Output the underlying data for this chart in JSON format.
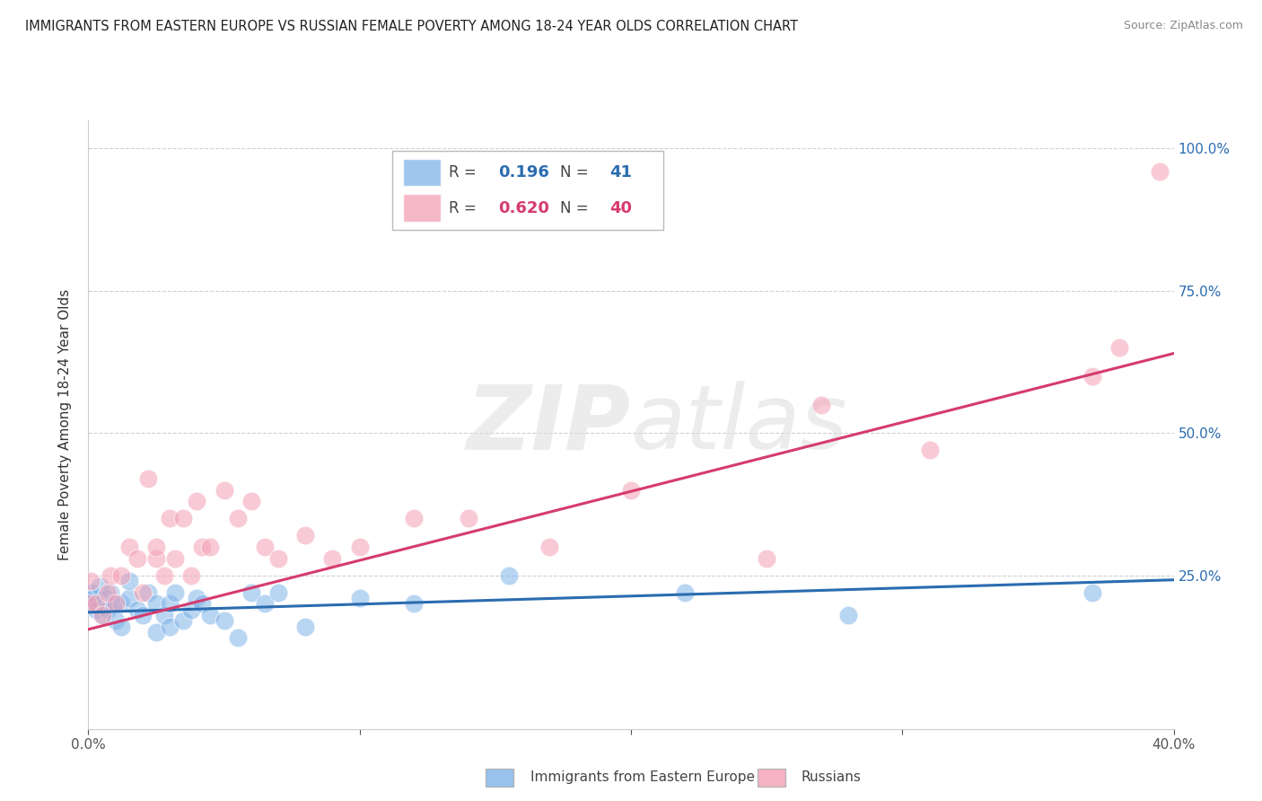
{
  "title": "IMMIGRANTS FROM EASTERN EUROPE VS RUSSIAN FEMALE POVERTY AMONG 18-24 YEAR OLDS CORRELATION CHART",
  "source": "Source: ZipAtlas.com",
  "ylabel": "Female Poverty Among 18-24 Year Olds",
  "xlim": [
    0.0,
    0.4
  ],
  "ylim": [
    -0.02,
    1.05
  ],
  "ytick_labels": [
    "",
    "25.0%",
    "50.0%",
    "75.0%",
    "100.0%"
  ],
  "ytick_positions": [
    0.0,
    0.25,
    0.5,
    0.75,
    1.0
  ],
  "legend_r_blue": "0.196",
  "legend_n_blue": "41",
  "legend_r_pink": "0.620",
  "legend_n_pink": "40",
  "blue_color": "#7fb3e8",
  "pink_color": "#f4a0b5",
  "blue_line_color": "#2b6cb0",
  "pink_line_color": "#d63b6e",
  "watermark_color": "#e0e0e0",
  "blue_scatter_x": [
    0.0,
    0.001,
    0.002,
    0.003,
    0.004,
    0.005,
    0.006,
    0.007,
    0.008,
    0.009,
    0.01,
    0.012,
    0.012,
    0.015,
    0.015,
    0.018,
    0.02,
    0.022,
    0.025,
    0.025,
    0.028,
    0.03,
    0.03,
    0.032,
    0.035,
    0.038,
    0.04,
    0.042,
    0.045,
    0.05,
    0.055,
    0.06,
    0.065,
    0.07,
    0.08,
    0.1,
    0.12,
    0.155,
    0.22,
    0.28,
    0.37
  ],
  "blue_scatter_y": [
    0.2,
    0.22,
    0.21,
    0.19,
    0.23,
    0.18,
    0.21,
    0.19,
    0.22,
    0.2,
    0.17,
    0.2,
    0.16,
    0.21,
    0.24,
    0.19,
    0.18,
    0.22,
    0.2,
    0.15,
    0.18,
    0.16,
    0.2,
    0.22,
    0.17,
    0.19,
    0.21,
    0.2,
    0.18,
    0.17,
    0.14,
    0.22,
    0.2,
    0.22,
    0.16,
    0.21,
    0.2,
    0.25,
    0.22,
    0.18,
    0.22
  ],
  "pink_scatter_x": [
    0.0,
    0.001,
    0.003,
    0.005,
    0.007,
    0.008,
    0.01,
    0.012,
    0.015,
    0.018,
    0.02,
    0.022,
    0.025,
    0.025,
    0.028,
    0.03,
    0.032,
    0.035,
    0.038,
    0.04,
    0.042,
    0.045,
    0.05,
    0.055,
    0.06,
    0.065,
    0.07,
    0.08,
    0.09,
    0.1,
    0.12,
    0.14,
    0.17,
    0.2,
    0.25,
    0.27,
    0.31,
    0.37,
    0.38,
    0.395
  ],
  "pink_scatter_y": [
    0.2,
    0.24,
    0.2,
    0.18,
    0.22,
    0.25,
    0.2,
    0.25,
    0.3,
    0.28,
    0.22,
    0.42,
    0.28,
    0.3,
    0.25,
    0.35,
    0.28,
    0.35,
    0.25,
    0.38,
    0.3,
    0.3,
    0.4,
    0.35,
    0.38,
    0.3,
    0.28,
    0.32,
    0.28,
    0.3,
    0.35,
    0.35,
    0.3,
    0.4,
    0.28,
    0.55,
    0.47,
    0.6,
    0.65,
    0.96
  ],
  "blue_line_x": [
    0.0,
    0.4
  ],
  "blue_line_y": [
    0.185,
    0.242
  ],
  "pink_line_x": [
    0.0,
    0.4
  ],
  "pink_line_y": [
    0.155,
    0.64
  ]
}
